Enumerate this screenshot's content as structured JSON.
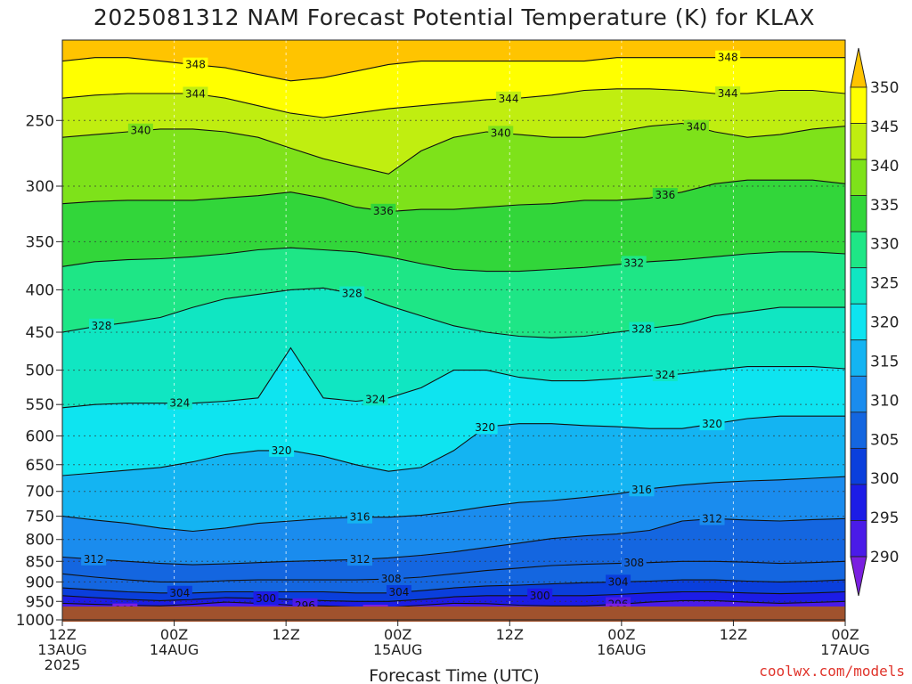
{
  "title": "2025081312 NAM Forecast Potential Temperature (K) for KLAX",
  "credit": "coolwx.com/models",
  "chart_data": {
    "type": "heatmap",
    "title": "2025081312 NAM Forecast Potential Temperature (K) for KLAX",
    "xlabel": "Forecast Time (UTC)",
    "ylabel": "",
    "y_scale": "log",
    "y_reversed": true,
    "ylim": [
      1000,
      200
    ],
    "y_ticks": [
      250,
      300,
      350,
      400,
      450,
      500,
      550,
      600,
      650,
      700,
      750,
      800,
      850,
      900,
      950,
      1000
    ],
    "x_ticks": [
      {
        "time": "2025-08-13 12Z",
        "label1": "12Z",
        "label2": "13AUG",
        "label3": "2025"
      },
      {
        "time": "2025-08-14 00Z",
        "label1": "00Z",
        "label2": "14AUG",
        "label3": ""
      },
      {
        "time": "2025-08-14 12Z",
        "label1": "12Z",
        "label2": "",
        "label3": ""
      },
      {
        "time": "2025-08-15 00Z",
        "label1": "00Z",
        "label2": "15AUG",
        "label3": ""
      },
      {
        "time": "2025-08-15 12Z",
        "label1": "12Z",
        "label2": "",
        "label3": ""
      },
      {
        "time": "2025-08-16 00Z",
        "label1": "00Z",
        "label2": "16AUG",
        "label3": ""
      },
      {
        "time": "2025-08-16 12Z",
        "label1": "12Z",
        "label2": "",
        "label3": ""
      },
      {
        "time": "2025-08-17 00Z",
        "label1": "00Z",
        "label2": "17AUG",
        "label3": ""
      }
    ],
    "grid": true,
    "colorbar": {
      "levels": [
        290,
        295,
        300,
        305,
        310,
        315,
        320,
        325,
        330,
        335,
        340,
        345,
        350
      ],
      "colors": [
        "#7a1fe0",
        "#4a1be8",
        "#1c1ce6",
        "#0a3fdc",
        "#1466e0",
        "#1a8cee",
        "#14b4f2",
        "#0ee4f0",
        "#10e6c2",
        "#1ee686",
        "#32d63a",
        "#7ee21a",
        "#c0ee10",
        "#ffff00",
        "#ffc400"
      ],
      "position": "right"
    },
    "contour_interval": 4,
    "contour_labels": [
      348,
      344,
      340,
      336,
      332,
      328,
      324,
      320,
      316,
      312,
      308,
      304,
      300,
      296,
      292
    ],
    "surface_color": "#a0522d",
    "isentropes": [
      {
        "theta": 292,
        "p": [
          970,
          972,
          975,
          976,
          972,
          965,
          968,
          972,
          975,
          978,
          978,
          972,
          968,
          970,
          975,
          978,
          978,
          975,
          970,
          965,
          966,
          970,
          972,
          970,
          968
        ]
      },
      {
        "theta": 296,
        "p": [
          955,
          958,
          960,
          962,
          958,
          952,
          955,
          960,
          962,
          965,
          966,
          960,
          955,
          956,
          960,
          962,
          962,
          958,
          952,
          948,
          948,
          952,
          955,
          953,
          950
        ]
      },
      {
        "theta": 300,
        "p": [
          935,
          940,
          945,
          948,
          945,
          940,
          942,
          945,
          948,
          950,
          950,
          945,
          938,
          935,
          935,
          935,
          935,
          932,
          928,
          925,
          925,
          928,
          930,
          928,
          925
        ]
      },
      {
        "theta": 304,
        "p": [
          915,
          920,
          925,
          928,
          928,
          925,
          925,
          925,
          925,
          928,
          928,
          922,
          915,
          910,
          908,
          905,
          902,
          900,
          898,
          895,
          895,
          898,
          900,
          898,
          895
        ]
      },
      {
        "theta": 308,
        "p": [
          880,
          888,
          895,
          900,
          900,
          897,
          895,
          895,
          895,
          895,
          893,
          888,
          880,
          872,
          866,
          860,
          857,
          855,
          853,
          850,
          850,
          852,
          855,
          853,
          850
        ]
      },
      {
        "theta": 312,
        "p": [
          840,
          845,
          850,
          855,
          858,
          856,
          853,
          850,
          848,
          846,
          842,
          836,
          828,
          818,
          808,
          798,
          792,
          788,
          780,
          760,
          755,
          758,
          760,
          757,
          755
        ]
      },
      {
        "theta": 316,
        "p": [
          750,
          758,
          765,
          775,
          782,
          775,
          765,
          760,
          755,
          752,
          752,
          748,
          740,
          730,
          722,
          718,
          712,
          705,
          695,
          688,
          683,
          680,
          678,
          675,
          672
        ]
      },
      {
        "theta": 320,
        "p": [
          670,
          665,
          660,
          655,
          645,
          632,
          625,
          625,
          635,
          650,
          662,
          655,
          625,
          585,
          580,
          580,
          583,
          585,
          588,
          588,
          580,
          572,
          568,
          568,
          568
        ]
      },
      {
        "theta": 324,
        "p": [
          555,
          550,
          548,
          548,
          548,
          545,
          540,
          470,
          540,
          545,
          540,
          525,
          500,
          500,
          510,
          515,
          515,
          512,
          508,
          505,
          500,
          495,
          495,
          495,
          498
        ]
      },
      {
        "theta": 328,
        "p": [
          450,
          443,
          438,
          432,
          420,
          410,
          405,
          400,
          398,
          405,
          418,
          430,
          442,
          450,
          455,
          457,
          455,
          450,
          445,
          440,
          430,
          425,
          420,
          420,
          420
        ]
      },
      {
        "theta": 332,
        "p": [
          375,
          370,
          368,
          367,
          365,
          362,
          358,
          356,
          358,
          360,
          365,
          372,
          378,
          380,
          380,
          378,
          376,
          373,
          370,
          368,
          365,
          362,
          360,
          360,
          362
        ]
      },
      {
        "theta": 336,
        "p": [
          315,
          313,
          312,
          312,
          312,
          310,
          308,
          305,
          310,
          318,
          322,
          320,
          320,
          318,
          316,
          315,
          312,
          312,
          310,
          305,
          298,
          295,
          295,
          295,
          298
        ]
      },
      {
        "theta": 340,
        "p": [
          262,
          260,
          258,
          256,
          256,
          258,
          262,
          270,
          278,
          284,
          290,
          272,
          262,
          258,
          260,
          262,
          262,
          258,
          254,
          252,
          258,
          262,
          260,
          256,
          254
        ]
      },
      {
        "theta": 344,
        "p": [
          235,
          233,
          232,
          232,
          232,
          235,
          240,
          245,
          248,
          245,
          242,
          240,
          238,
          236,
          235,
          233,
          230,
          229,
          229,
          230,
          232,
          232,
          230,
          230,
          232
        ]
      },
      {
        "theta": 348,
        "p": [
          212,
          210,
          210,
          212,
          214,
          216,
          220,
          224,
          222,
          218,
          214,
          212,
          212,
          212,
          212,
          212,
          212,
          210,
          210,
          210,
          210,
          210,
          210,
          210,
          210
        ]
      }
    ],
    "contour_label_positions": [
      {
        "text": "348",
        "t": 0.17,
        "theta": 348
      },
      {
        "text": "348",
        "t": 0.85,
        "theta": 348
      },
      {
        "text": "344",
        "t": 0.17,
        "theta": 344
      },
      {
        "text": "344",
        "t": 0.57,
        "theta": 344
      },
      {
        "text": "344",
        "t": 0.85,
        "theta": 344
      },
      {
        "text": "340",
        "t": 0.1,
        "theta": 340
      },
      {
        "text": "340",
        "t": 0.56,
        "theta": 340
      },
      {
        "text": "340",
        "t": 0.81,
        "theta": 340
      },
      {
        "text": "336",
        "t": 0.41,
        "theta": 336
      },
      {
        "text": "336",
        "t": 0.77,
        "theta": 336
      },
      {
        "text": "332",
        "t": 0.73,
        "theta": 332
      },
      {
        "text": "328",
        "t": 0.05,
        "theta": 328
      },
      {
        "text": "328",
        "t": 0.37,
        "theta": 328
      },
      {
        "text": "328",
        "t": 0.74,
        "theta": 328
      },
      {
        "text": "324",
        "t": 0.15,
        "theta": 324
      },
      {
        "text": "324",
        "t": 0.4,
        "theta": 324
      },
      {
        "text": "324",
        "t": 0.77,
        "theta": 324
      },
      {
        "text": "320",
        "t": 0.28,
        "theta": 320
      },
      {
        "text": "320",
        "t": 0.54,
        "theta": 320
      },
      {
        "text": "320",
        "t": 0.83,
        "theta": 320
      },
      {
        "text": "316",
        "t": 0.38,
        "theta": 316
      },
      {
        "text": "316",
        "t": 0.74,
        "theta": 316
      },
      {
        "text": "312",
        "t": 0.04,
        "theta": 312
      },
      {
        "text": "312",
        "t": 0.38,
        "theta": 312
      },
      {
        "text": "312",
        "t": 0.83,
        "theta": 312
      },
      {
        "text": "308",
        "t": 0.42,
        "theta": 308
      },
      {
        "text": "308",
        "t": 0.73,
        "theta": 308
      },
      {
        "text": "304",
        "t": 0.15,
        "theta": 304
      },
      {
        "text": "304",
        "t": 0.43,
        "theta": 304
      },
      {
        "text": "304",
        "t": 0.71,
        "theta": 304
      },
      {
        "text": "300",
        "t": 0.26,
        "theta": 300
      },
      {
        "text": "300",
        "t": 0.61,
        "theta": 300
      },
      {
        "text": "296",
        "t": 0.31,
        "theta": 296
      },
      {
        "text": "296",
        "t": 0.71,
        "theta": 296
      },
      {
        "text": "292",
        "t": 0.08,
        "theta": 292
      },
      {
        "text": "292",
        "t": 0.4,
        "theta": 292
      },
      {
        "text": "292",
        "t": 0.71,
        "theta": 292
      }
    ]
  }
}
